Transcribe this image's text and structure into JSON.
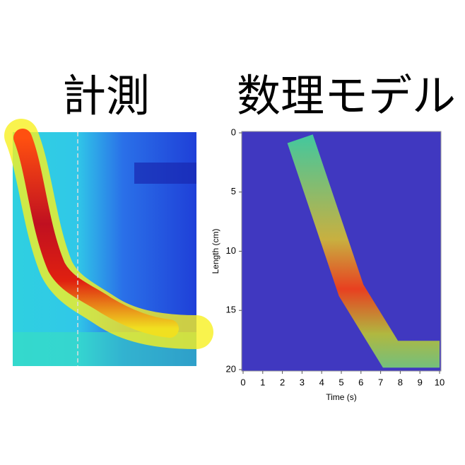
{
  "chart_data": [
    {
      "type": "image",
      "title": "計測"
    },
    {
      "type": "band",
      "title": "数理モデル",
      "x_label": "Time (s)",
      "y_label": "Length (cm)",
      "x": [
        2.9,
        5.5,
        7.5,
        10
      ],
      "values": [
        0.5,
        13.3,
        18.7,
        18.7
      ],
      "xlim": [
        0,
        10
      ],
      "ylim": [
        0,
        20
      ],
      "y_inverted": true,
      "xticks": [
        0,
        1,
        2,
        3,
        4,
        5,
        6,
        7,
        8,
        9,
        10
      ],
      "yticks": [
        0,
        5,
        10,
        15,
        20
      ],
      "background": "#4038c0"
    }
  ]
}
